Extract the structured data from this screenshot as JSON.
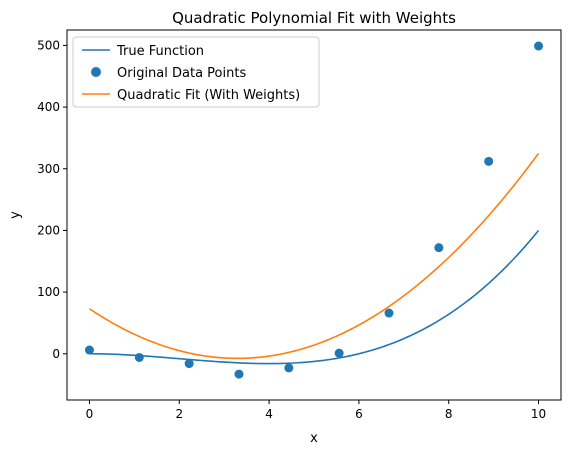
{
  "chart_data": {
    "type": "line",
    "title": "Quadratic Polynomial Fit with Weights",
    "xlabel": "x",
    "ylabel": "y",
    "xlim": [
      -0.5,
      10.5
    ],
    "ylim": [
      -75,
      525
    ],
    "x_ticks": [
      0,
      2,
      4,
      6,
      8,
      10
    ],
    "y_ticks": [
      0,
      100,
      200,
      300,
      400,
      500
    ],
    "grid": false,
    "legend_position": "top-left",
    "series": [
      {
        "name": "True Function",
        "kind": "line",
        "color": "#1f77b4",
        "expression": "0.5*x^3 - 3*x^2"
      },
      {
        "name": "Original Data Points",
        "kind": "scatter",
        "color": "#1f77b4",
        "x": [
          0,
          1.11,
          2.22,
          3.33,
          4.44,
          5.56,
          6.67,
          7.78,
          8.89,
          10
        ],
        "y": [
          6,
          -6,
          -16,
          -33,
          -23,
          1,
          66,
          172,
          312,
          499
        ]
      },
      {
        "name": "Quadratic Fit (With Weights)",
        "kind": "line",
        "color": "#ff7f0e",
        "coefficients": [
          7.4,
          -48.8,
          73.0
        ]
      }
    ]
  }
}
